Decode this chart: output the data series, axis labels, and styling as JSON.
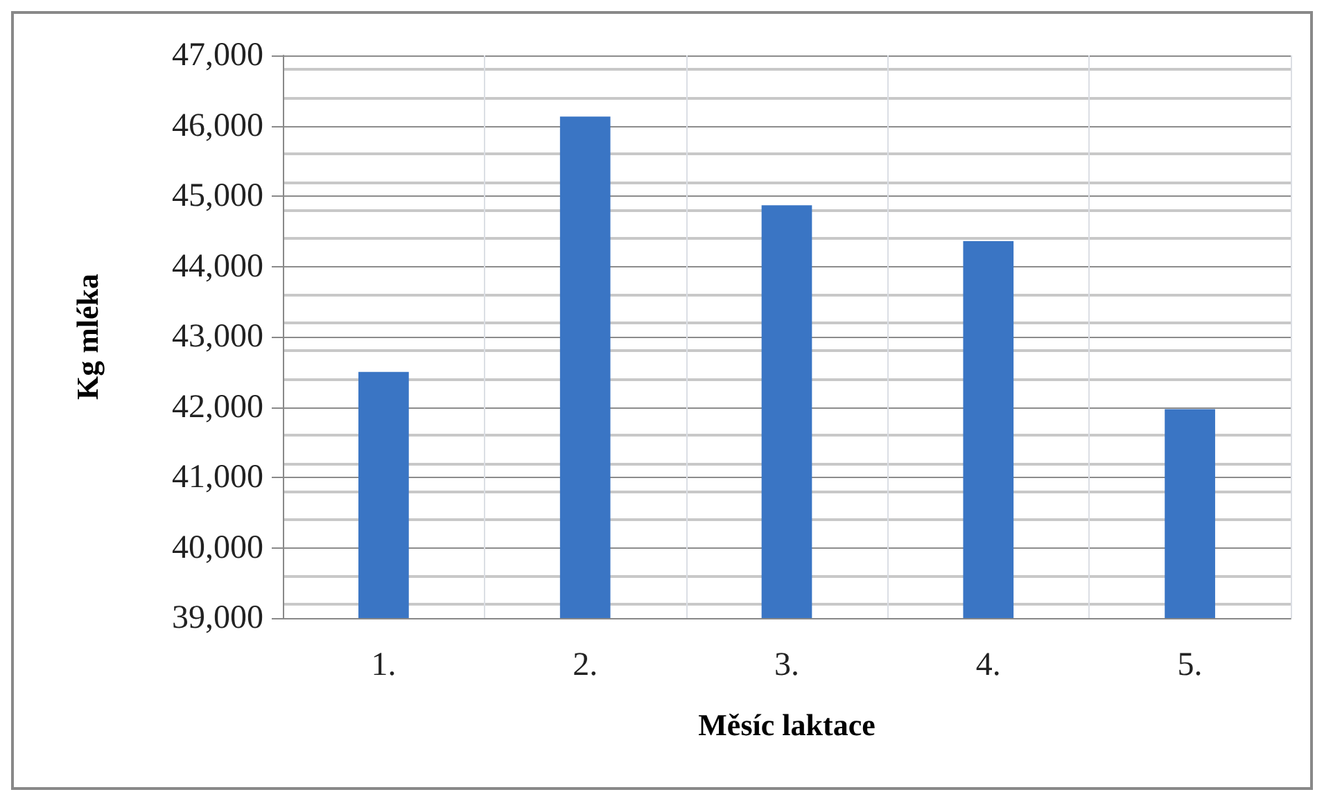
{
  "chart_data": {
    "type": "bar",
    "xlabel": "Měsíc laktace",
    "ylabel": "Kg mléka",
    "categories": [
      "1.",
      "2.",
      "3.",
      "4.",
      "5."
    ],
    "values": [
      42500,
      46130,
      44870,
      44360,
      41970
    ],
    "color": "#3a75c4",
    "ylim": [
      39000,
      47000
    ],
    "yticks": [
      {
        "value": 39000,
        "label": "39,000"
      },
      {
        "value": 40000,
        "label": "40,000"
      },
      {
        "value": 41000,
        "label": "41,000"
      },
      {
        "value": 42000,
        "label": "42,000"
      },
      {
        "value": 43000,
        "label": "43,000"
      },
      {
        "value": 44000,
        "label": "44,000"
      },
      {
        "value": 45000,
        "label": "45,000"
      },
      {
        "value": 46000,
        "label": "46,000"
      },
      {
        "value": 47000,
        "label": "47,000"
      }
    ],
    "grid": true
  }
}
